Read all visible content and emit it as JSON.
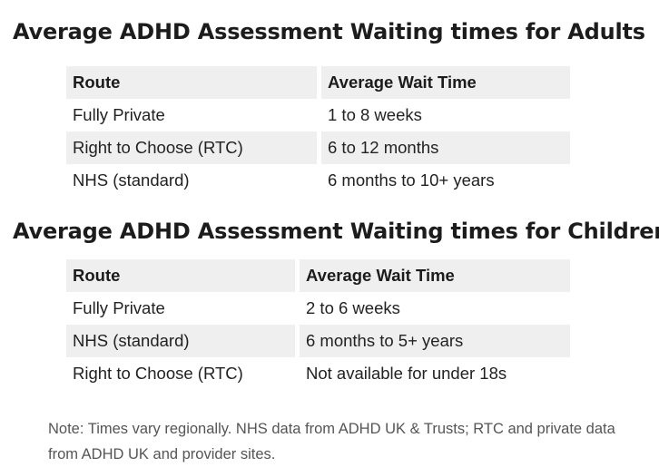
{
  "adults": {
    "title": "Average ADHD Assessment Waiting times for Adults",
    "columns": [
      "Route",
      "Average Wait Time"
    ],
    "rows": [
      [
        "Fully Private",
        "1 to 8 weeks"
      ],
      [
        "Right to Choose (RTC)",
        "6 to 12 months"
      ],
      [
        "NHS (standard)",
        "6 months to 10+ years"
      ]
    ]
  },
  "children": {
    "title": "Average ADHD Assessment Waiting times for Children",
    "columns": [
      "Route",
      "Average Wait Time"
    ],
    "rows": [
      [
        "Fully Private",
        "2 to 6 weeks"
      ],
      [
        "NHS (standard)",
        "6 months to 5+ years"
      ],
      [
        "Right to Choose (RTC)",
        "Not available for under 18s"
      ]
    ]
  },
  "note": "Note: Times vary regionally. NHS data from ADHD UK & Trusts; RTC and private data from ADHD UK and provider sites.",
  "colors": {
    "header_bg": "#efefef",
    "stripe_bg": "#efefef",
    "text": "#222222",
    "note_text": "#555555"
  }
}
